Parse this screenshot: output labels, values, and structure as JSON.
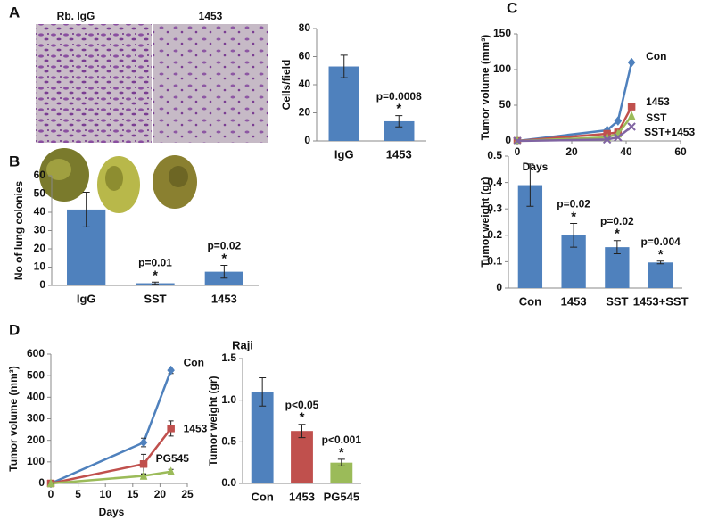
{
  "panels": [
    "A",
    "B",
    "C",
    "D"
  ],
  "images": {
    "A": [
      "Rb. IgG",
      "1453"
    ]
  },
  "chart_data": [
    {
      "type": "bar",
      "ylabel": "Cells/field",
      "categories": [
        "IgG",
        "1453"
      ],
      "values": [
        53,
        14
      ],
      "errors": [
        8,
        4
      ],
      "colors": [
        "#4f81bd",
        "#4f81bd"
      ],
      "annotations": [
        null,
        "p=0.0008"
      ],
      "markers": [
        null,
        "*"
      ],
      "ylim": [
        0,
        80
      ],
      "yticks": [
        0,
        20,
        40,
        60,
        80
      ]
    },
    {
      "type": "bar",
      "ylabel": "No of lung colonies",
      "categories": [
        "IgG",
        "SST",
        "1453"
      ],
      "values": [
        41.5,
        1.2,
        7.5
      ],
      "errors": [
        9.5,
        0.6,
        3.5
      ],
      "colors": [
        "#4f81bd",
        "#4f81bd",
        "#4f81bd"
      ],
      "annotations": [
        null,
        "p=0.01",
        "p=0.02"
      ],
      "markers": [
        null,
        "*",
        "*"
      ],
      "ylim": [
        0,
        60
      ],
      "yticks": [
        0,
        10,
        20,
        30,
        40,
        50,
        60
      ]
    },
    {
      "type": "line",
      "xlabel": "Days",
      "ylabel": "Tumor volume (mm³)",
      "x": [
        0,
        33,
        37,
        42
      ],
      "series": [
        {
          "name": "Con",
          "color": "#4f81bd",
          "values": [
            0,
            15,
            28,
            110
          ]
        },
        {
          "name": "1453",
          "color": "#c0504d",
          "values": [
            0,
            10,
            12,
            48
          ]
        },
        {
          "name": "SST",
          "color": "#9bbb59",
          "values": [
            0,
            5,
            10,
            35
          ]
        },
        {
          "name": "SST+1453",
          "color": "#8064a2",
          "values": [
            0,
            2,
            5,
            20
          ]
        }
      ],
      "xlim": [
        0,
        60
      ],
      "xticks": [
        0,
        20,
        40,
        60
      ],
      "ylim": [
        0,
        150
      ],
      "yticks": [
        0,
        50,
        100,
        150
      ]
    },
    {
      "type": "bar",
      "ylabel": "Tumor weight (gr)",
      "categories": [
        "Con",
        "1453",
        "SST",
        "1453+SST"
      ],
      "values": [
        0.39,
        0.2,
        0.155,
        0.097
      ],
      "errors": [
        0.08,
        0.045,
        0.025,
        0.005
      ],
      "colors": [
        "#4f81bd",
        "#4f81bd",
        "#4f81bd",
        "#4f81bd"
      ],
      "annotations": [
        null,
        "p=0.02",
        "p=0.02",
        "p=0.004"
      ],
      "markers": [
        null,
        "*",
        "*",
        "*"
      ],
      "ylim": [
        0,
        0.5
      ],
      "yticks": [
        0,
        0.1,
        0.2,
        0.3,
        0.4,
        0.5
      ]
    },
    {
      "type": "line",
      "title": "Raji",
      "xlabel": "Days",
      "ylabel": "Tumor volume (mm³)",
      "x": [
        0,
        17,
        22
      ],
      "series": [
        {
          "name": "Con",
          "color": "#4f81bd",
          "values": [
            0,
            190,
            525
          ],
          "errors": [
            0,
            20,
            15
          ]
        },
        {
          "name": "1453",
          "color": "#c0504d",
          "values": [
            0,
            90,
            255
          ],
          "errors": [
            0,
            45,
            35
          ]
        },
        {
          "name": "PG545",
          "color": "#9bbb59",
          "values": [
            0,
            35,
            55
          ],
          "errors": [
            0,
            8,
            10
          ]
        }
      ],
      "xlim": [
        0,
        25
      ],
      "xticks": [
        0,
        5,
        10,
        15,
        20,
        25
      ],
      "ylim": [
        0,
        600
      ],
      "yticks": [
        0,
        100,
        200,
        300,
        400,
        500,
        600
      ]
    },
    {
      "type": "bar",
      "ylabel": "Tumor weight (gr)",
      "categories": [
        "Con",
        "1453",
        "PG545"
      ],
      "values": [
        1.1,
        0.63,
        0.25
      ],
      "errors": [
        0.17,
        0.08,
        0.04
      ],
      "colors": [
        "#4f81bd",
        "#c0504d",
        "#9bbb59"
      ],
      "annotations": [
        null,
        "p<0.05",
        "p<0.001"
      ],
      "markers": [
        null,
        "*",
        "*"
      ],
      "ylim": [
        0,
        1.5
      ],
      "yticks": [
        {
          "value": 0,
          "label": "0.0"
        },
        0.5,
        {
          "value": 1,
          "label": "1.0"
        },
        1.5
      ]
    }
  ]
}
